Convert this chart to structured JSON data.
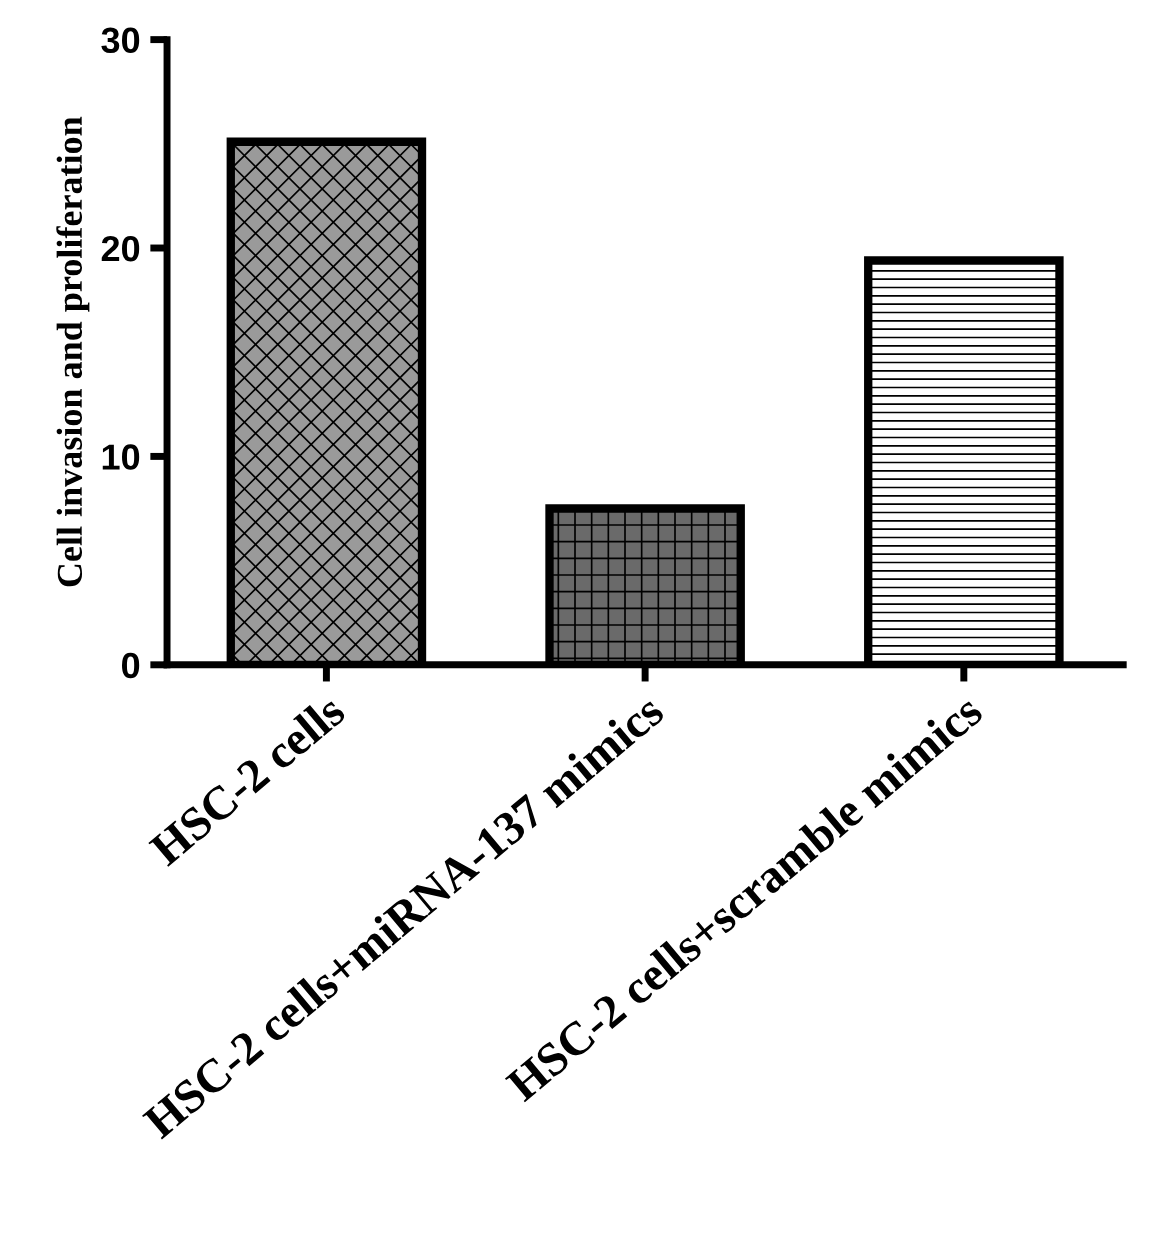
{
  "chart_data": {
    "type": "bar",
    "ylabel": "Cell invasion and proliferation",
    "categories": [
      "HSC-2 cells",
      "HSC-2 cells+miRNA-137 mimics",
      "HSC-2 cells+scramble mimics"
    ],
    "values": [
      25.1,
      7.5,
      19.4
    ],
    "colors": [
      "#9a9a9a",
      "#6a6a6a",
      "#ffffff"
    ],
    "ylim": [
      0,
      30
    ],
    "yticks": [
      0,
      10,
      20,
      30
    ],
    "grid": false
  }
}
